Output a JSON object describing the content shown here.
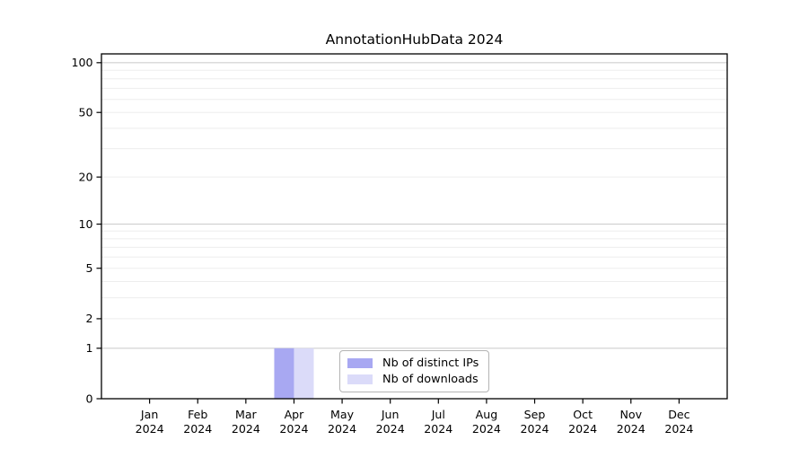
{
  "chart_data": {
    "type": "bar",
    "title": "AnnotationHubData 2024",
    "categories": [
      "Jan",
      "Feb",
      "Mar",
      "Apr",
      "May",
      "Jun",
      "Jul",
      "Aug",
      "Sep",
      "Oct",
      "Nov",
      "Dec"
    ],
    "x_year_label": "2024",
    "series": [
      {
        "name": "Nb of distinct IPs",
        "color": "#a8a8f2",
        "values": [
          0,
          0,
          0,
          1,
          0,
          0,
          0,
          0,
          0,
          0,
          0,
          0
        ]
      },
      {
        "name": "Nb of downloads",
        "color": "#dbdbf9",
        "values": [
          0,
          0,
          0,
          1,
          0,
          0,
          0,
          0,
          0,
          0,
          0,
          0
        ]
      }
    ],
    "y_axis": {
      "scale": "log1p",
      "tick_values": [
        0,
        1,
        2,
        5,
        10,
        20,
        50,
        100
      ],
      "tick_labels": [
        "0",
        "1",
        "2",
        "5",
        "10",
        "20",
        "50",
        "100"
      ],
      "minor_grid_values": [
        2,
        3,
        4,
        5,
        6,
        7,
        8,
        9,
        20,
        30,
        40,
        50,
        60,
        70,
        80,
        90
      ],
      "major_grid_values": [
        1,
        10,
        100
      ],
      "ylim": [
        0,
        113
      ]
    },
    "legend": {
      "position": "bottom-center",
      "entries": [
        "Nb of distinct IPs",
        "Nb of downloads"
      ]
    },
    "colors": {
      "background": "#ffffff",
      "axis": "#000000",
      "text": "#000000",
      "minor_grid": "#ededed",
      "major_grid": "#cfcfcf",
      "legend_border": "#b3b3b3"
    }
  }
}
